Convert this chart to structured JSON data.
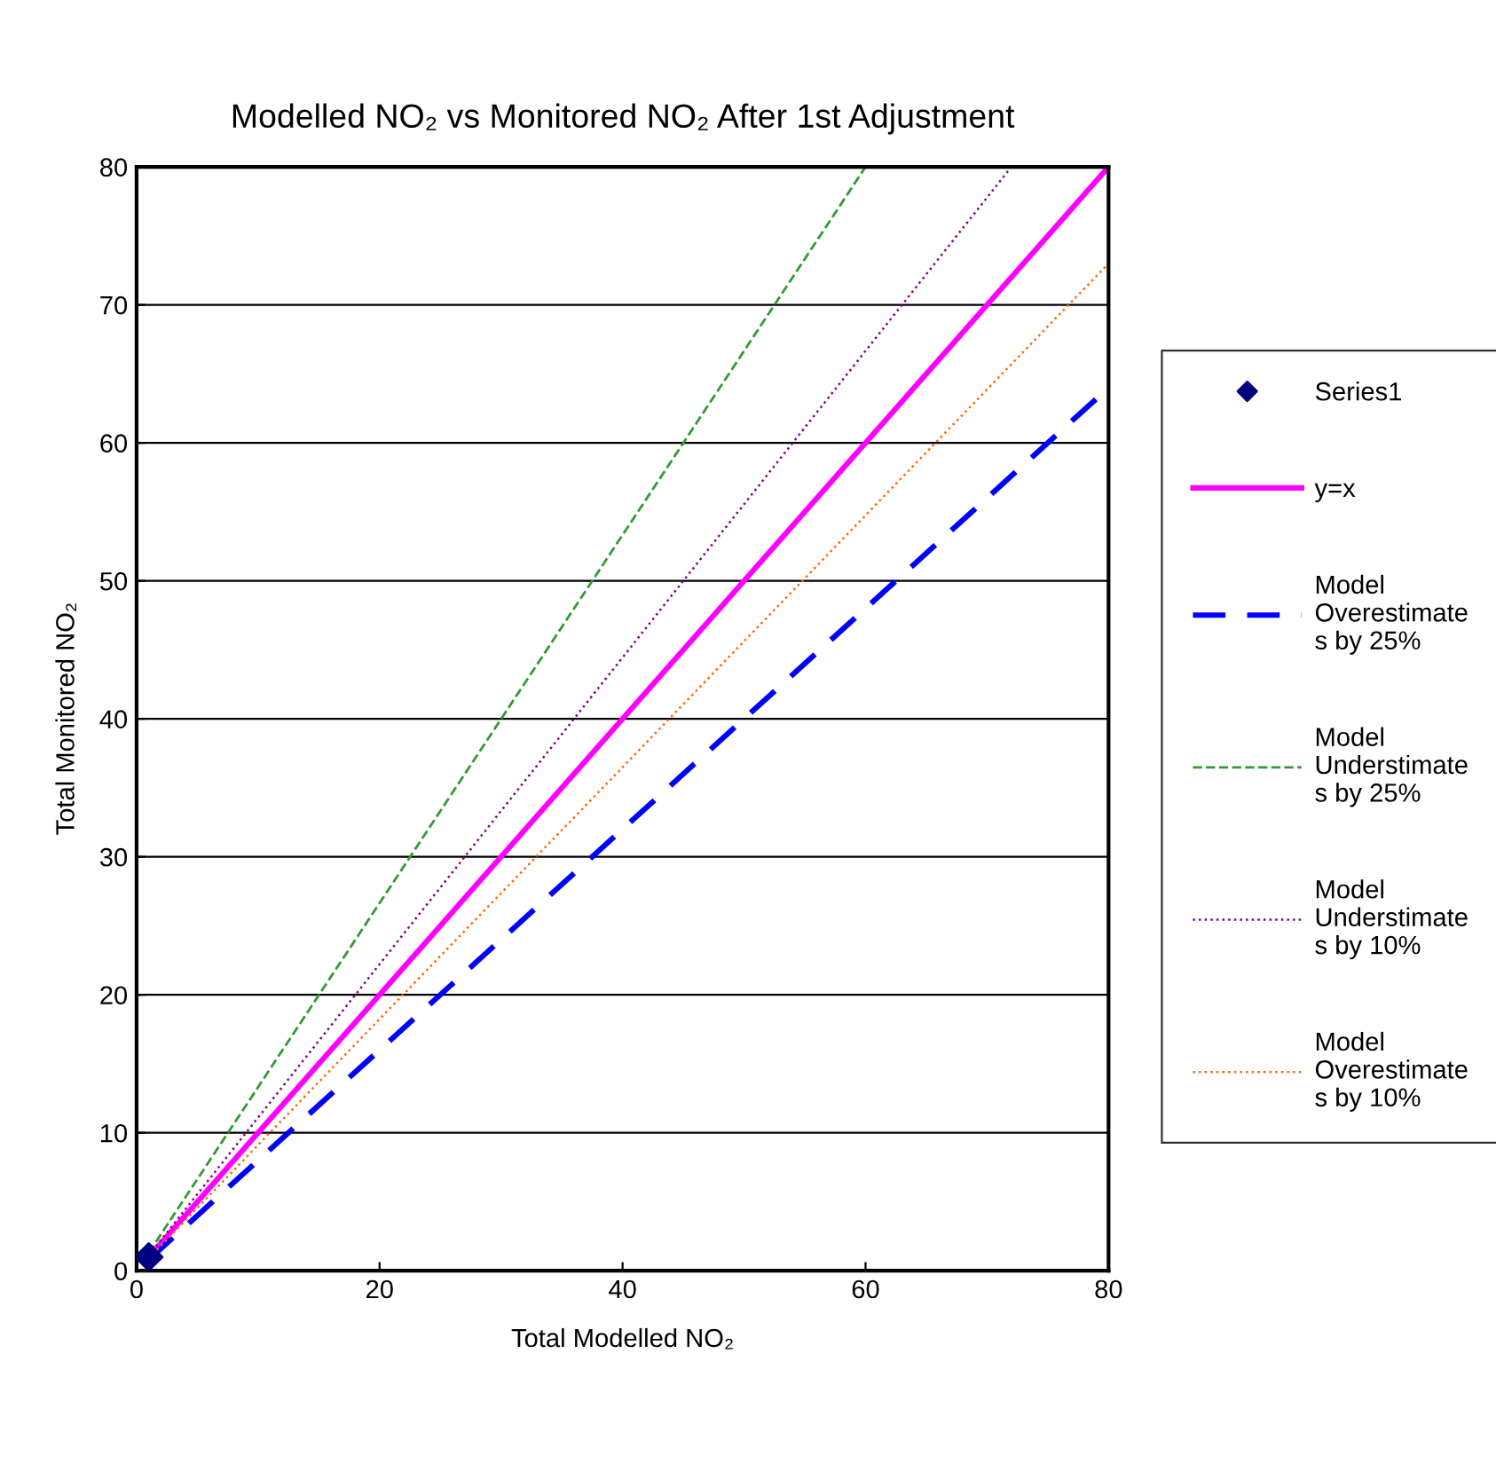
{
  "chart_data": {
    "type": "line",
    "title": "Modelled NO₂ vs Monitored NO₂ After 1st Adjustment",
    "xlabel": "Total Modelled NO₂",
    "ylabel": "Total Monitored NO₂",
    "xlim": [
      0,
      80
    ],
    "ylim": [
      0,
      80
    ],
    "xticks": [
      0,
      20,
      40,
      60,
      80
    ],
    "yticks": [
      0,
      10,
      20,
      30,
      40,
      50,
      60,
      70,
      80
    ],
    "grid": "y",
    "legend": "right",
    "series": [
      {
        "name": "Series1",
        "type": "scatter",
        "marker": "diamond",
        "color": "#000080",
        "x": [
          1
        ],
        "values": [
          1
        ]
      },
      {
        "name": "y=x",
        "color": "#ff00ff",
        "line_style": "solid",
        "x": [
          1,
          80
        ],
        "values": [
          1,
          80
        ]
      },
      {
        "name": "Model Overestimates by 25%",
        "color": "#0000ff",
        "line_style": "dashed",
        "x": [
          1,
          80
        ],
        "values": [
          0.8,
          64
        ]
      },
      {
        "name": "Model Understimates by 25%",
        "color": "#339933",
        "line_style": "dashed",
        "x": [
          1,
          60
        ],
        "values": [
          1.3,
          80
        ]
      },
      {
        "name": "Model Understimates by 10%",
        "color": "#800080",
        "line_style": "dotted",
        "x": [
          1,
          72
        ],
        "values": [
          1.1,
          80
        ]
      },
      {
        "name": "Model Overestimates by 10%",
        "color": "#ff6600",
        "line_style": "dotted",
        "x": [
          1,
          80
        ],
        "values": [
          0.9,
          73
        ]
      }
    ]
  }
}
